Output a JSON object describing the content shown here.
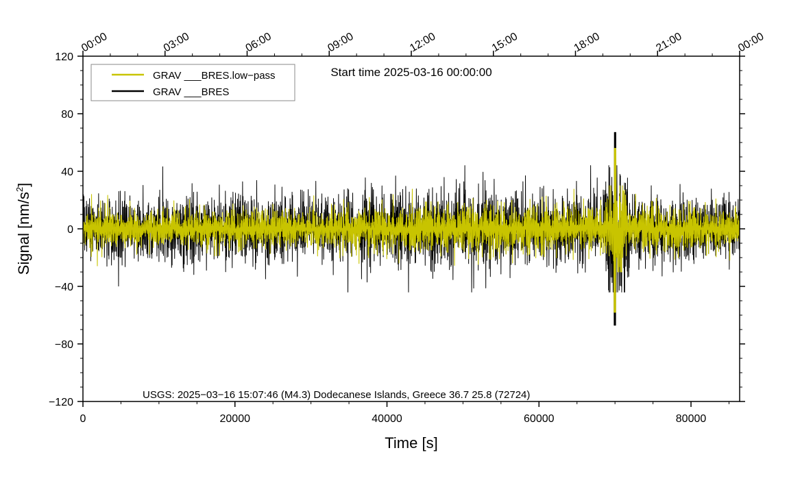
{
  "chart_data": {
    "type": "line",
    "title": "",
    "subtitle": "Start time 2025-03-16 00:00:00",
    "xlabel": "Time [s]",
    "ylabel_main": "Signal [nm/s",
    "ylabel_sup": "2",
    "ylabel_tail": "]",
    "xlim": [
      0,
      86400
    ],
    "ylim": [
      -120,
      120
    ],
    "grid": false,
    "legend_position": "top-left",
    "x_ticks": [
      0,
      20000,
      40000,
      60000,
      80000
    ],
    "x_tick_labels": [
      "0",
      "20000",
      "40000",
      "60000",
      "80000"
    ],
    "y_ticks": [
      -120,
      -80,
      -40,
      0,
      40,
      80,
      120
    ],
    "y_tick_labels": [
      "−120",
      "−80",
      "−40",
      "0",
      "40",
      "80",
      "120"
    ],
    "top_axis_seconds": [
      0,
      10800,
      21600,
      32400,
      43200,
      54000,
      64800,
      75600,
      86400
    ],
    "top_axis_labels": [
      "00:00",
      "03:00",
      "06:00",
      "09:00",
      "12:00",
      "15:00",
      "18:00",
      "21:00",
      "00:00"
    ],
    "footer_annotation": "USGS: 2025−03−16 15:07:46 (M4.3) Dodecanese Islands, Greece 36.7 25.8 (72724)",
    "event_time_s": 70000,
    "series": [
      {
        "name": "GRAV ___BRES.low−pass",
        "color": "#c8c400",
        "noise_envelope": [
          [
            0,
            7
          ],
          [
            10000,
            7
          ],
          [
            20000,
            7.5
          ],
          [
            30000,
            8
          ],
          [
            40000,
            9
          ],
          [
            50000,
            10
          ],
          [
            60000,
            9.5
          ],
          [
            68500,
            9
          ],
          [
            69500,
            18
          ],
          [
            70300,
            26
          ],
          [
            71000,
            20
          ],
          [
            72000,
            9
          ],
          [
            80000,
            8
          ],
          [
            86400,
            7
          ]
        ],
        "typical_range": [
          -30,
          30
        ],
        "peak_max": 56,
        "peak_min": -58
      },
      {
        "name": "GRAV ___BRES",
        "color": "#000000",
        "noise_envelope": [
          [
            0,
            11
          ],
          [
            10000,
            12
          ],
          [
            20000,
            12.5
          ],
          [
            30000,
            13
          ],
          [
            40000,
            14
          ],
          [
            50000,
            16
          ],
          [
            60000,
            15
          ],
          [
            68500,
            14
          ],
          [
            69500,
            26
          ],
          [
            70300,
            36
          ],
          [
            71000,
            28
          ],
          [
            72000,
            14
          ],
          [
            80000,
            13
          ],
          [
            86400,
            11
          ]
        ],
        "typical_range": [
          -44,
          44
        ],
        "peak_max": 67,
        "peak_min": -67
      }
    ]
  }
}
